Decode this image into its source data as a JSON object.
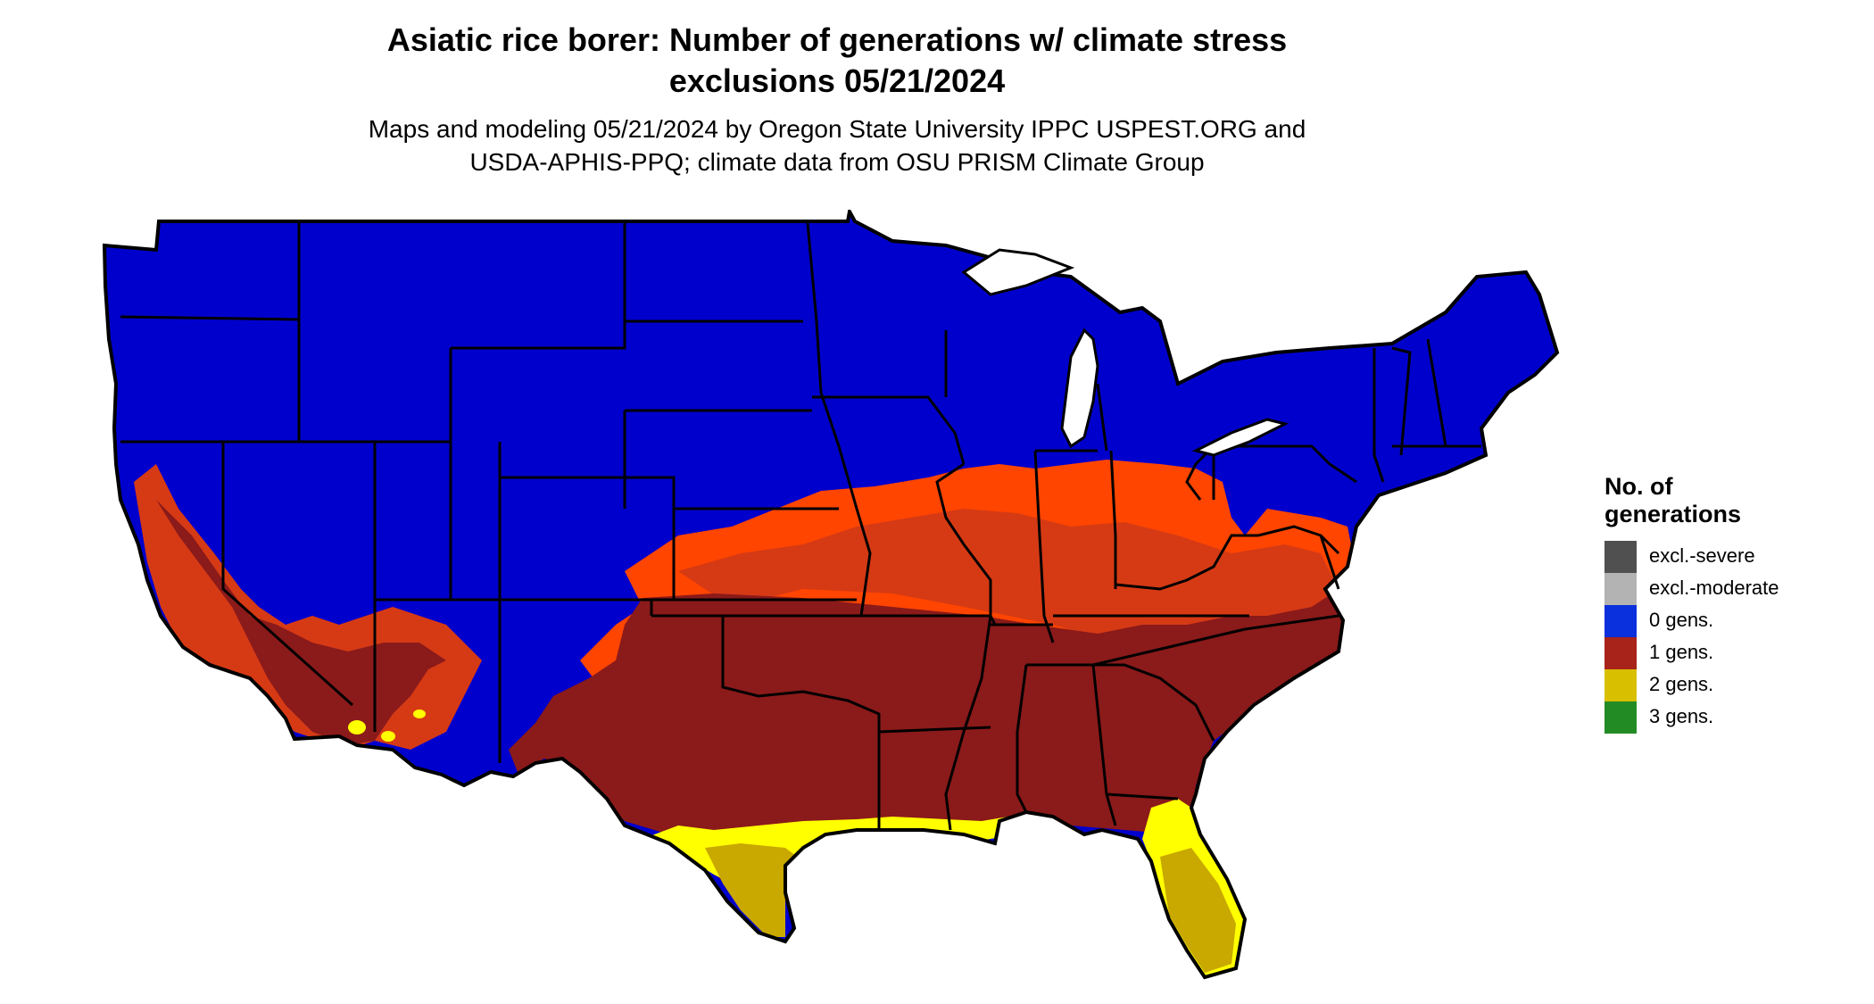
{
  "header": {
    "title_line1": "Asiatic rice borer: Number of generations w/ climate stress",
    "title_line2": "exclusions 05/21/2024",
    "subtitle_line1": "Maps and modeling 05/21/2024 by Oregon State University IPPC USPEST.ORG and",
    "subtitle_line2": "USDA-APHIS-PPQ; climate data from OSU PRISM Climate Group"
  },
  "legend": {
    "title_line1": "No. of",
    "title_line2": "generations",
    "items": [
      {
        "label": "excl.-severe",
        "color": "#505050"
      },
      {
        "label": "excl.-moderate",
        "color": "#b3b3b3"
      },
      {
        "label": "0 gens.",
        "color": "#0a2fdc"
      },
      {
        "label": "1 gens.",
        "color": "#a8231a"
      },
      {
        "label": "2 gens.",
        "color": "#d8bf00"
      },
      {
        "label": "3 gens.",
        "color": "#238b24"
      }
    ]
  },
  "map": {
    "colors": {
      "zero": "#0000cd",
      "one_light": "#ff4500",
      "one_mid": "#d63a14",
      "one_dark": "#8b1a1a",
      "two_bright": "#ffff00",
      "two_dark": "#c9a800",
      "three": "#3cb84a",
      "border": "#000000"
    }
  }
}
